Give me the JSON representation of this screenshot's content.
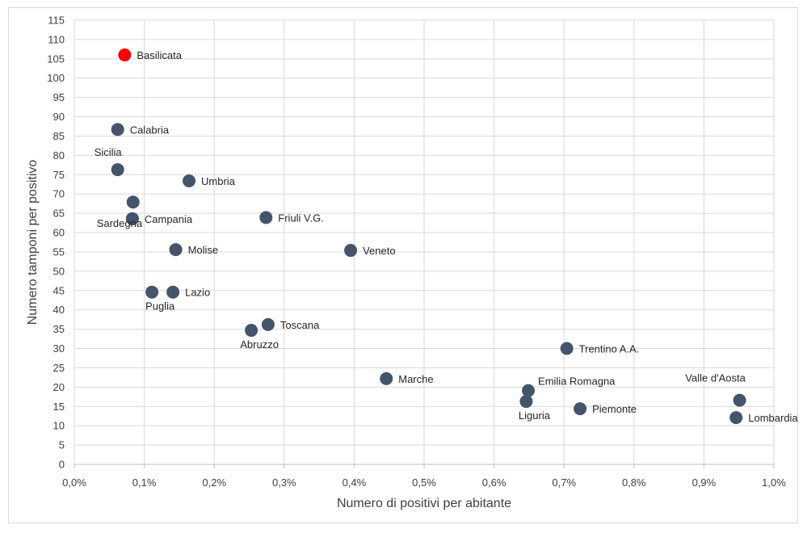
{
  "chart_data": {
    "type": "scatter",
    "title": "",
    "xlabel": "Numero di positivi per abitante",
    "ylabel": "Numero tamponi per positivo",
    "xlim": [
      0,
      1.0
    ],
    "ylim": [
      0,
      115
    ],
    "x_ticks": [
      {
        "value": 0.0,
        "label": "0,0%"
      },
      {
        "value": 0.1,
        "label": "0,1%"
      },
      {
        "value": 0.2,
        "label": "0,2%"
      },
      {
        "value": 0.3,
        "label": "0,3%"
      },
      {
        "value": 0.4,
        "label": "0,4%"
      },
      {
        "value": 0.5,
        "label": "0,5%"
      },
      {
        "value": 0.6,
        "label": "0,6%"
      },
      {
        "value": 0.7,
        "label": "0,7%"
      },
      {
        "value": 0.8,
        "label": "0,8%"
      },
      {
        "value": 0.9,
        "label": "0,9%"
      },
      {
        "value": 1.0,
        "label": "1,0%"
      }
    ],
    "y_ticks": [
      0,
      5,
      10,
      15,
      20,
      25,
      30,
      35,
      40,
      45,
      50,
      55,
      60,
      65,
      70,
      75,
      80,
      85,
      90,
      95,
      100,
      105,
      110,
      115
    ],
    "grid": "vertical and horizontal",
    "legend": "none",
    "colors": {
      "default": "#44546a",
      "highlight": "#ff0000",
      "grid": "#d9d9d9"
    },
    "points": [
      {
        "label": "Basilicata",
        "x": 0.072,
        "y": 106,
        "highlight": true,
        "label_pos": "right"
      },
      {
        "label": "Calabria",
        "x": 0.062,
        "y": 86.7,
        "label_pos": "right"
      },
      {
        "label": "Sicilia",
        "x": 0.062,
        "y": 76.3,
        "label_pos": "above"
      },
      {
        "label": "",
        "x": 0.084,
        "y": 67.9
      },
      {
        "label": "Campania",
        "x": 0.083,
        "y": 63.6,
        "label_pos": "right"
      },
      {
        "label": "Sardegna",
        "x": 0.083,
        "y": 63.6,
        "label_pos": "below-left"
      },
      {
        "label": "Umbria",
        "x": 0.164,
        "y": 73.4,
        "label_pos": "right"
      },
      {
        "label": "Friuli V.G.",
        "x": 0.274,
        "y": 63.9,
        "label_pos": "right"
      },
      {
        "label": "Molise",
        "x": 0.145,
        "y": 55.6,
        "label_pos": "right"
      },
      {
        "label": "Veneto",
        "x": 0.395,
        "y": 55.4,
        "label_pos": "right"
      },
      {
        "label": "Puglia",
        "x": 0.111,
        "y": 44.6,
        "label_pos": "below"
      },
      {
        "label": "Lazio",
        "x": 0.141,
        "y": 44.6,
        "label_pos": "right"
      },
      {
        "label": "Toscana",
        "x": 0.277,
        "y": 36.2,
        "label_pos": "right"
      },
      {
        "label": "Abruzzo",
        "x": 0.253,
        "y": 34.7,
        "label_pos": "below"
      },
      {
        "label": "Marche",
        "x": 0.446,
        "y": 22.2,
        "label_pos": "right"
      },
      {
        "label": "Trentino A.A.",
        "x": 0.704,
        "y": 30.0,
        "label_pos": "right"
      },
      {
        "label": "Emilia Romagna",
        "x": 0.649,
        "y": 19.1,
        "label_pos": "above-right"
      },
      {
        "label": "Liguria",
        "x": 0.646,
        "y": 16.3,
        "label_pos": "below"
      },
      {
        "label": "Piemonte",
        "x": 0.723,
        "y": 14.4,
        "label_pos": "right"
      },
      {
        "label": "Valle d'Aosta",
        "x": 0.951,
        "y": 16.6,
        "label_pos": "above-left"
      },
      {
        "label": "Lombardia",
        "x": 0.946,
        "y": 12.1,
        "label_pos": "right"
      }
    ]
  }
}
